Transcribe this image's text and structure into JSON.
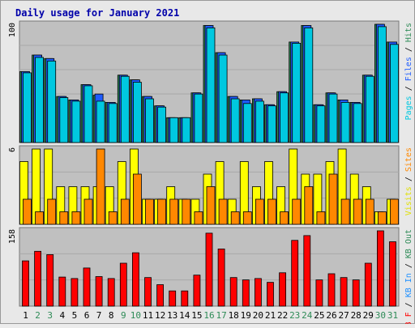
{
  "chart_data": [
    {
      "type": "bar",
      "title": "Daily usage for January 2021",
      "categories": [
        "1",
        "2",
        "3",
        "4",
        "5",
        "6",
        "7",
        "8",
        "9",
        "10",
        "11",
        "12",
        "13",
        "14",
        "15",
        "16",
        "17",
        "18",
        "19",
        "20",
        "21",
        "22",
        "23",
        "24",
        "25",
        "26",
        "27",
        "28",
        "29",
        "30",
        "31"
      ],
      "weekend_days": [
        2,
        3,
        9,
        10,
        16,
        17,
        23,
        24,
        30,
        31
      ],
      "colors": {
        "weekday_label": "#000000",
        "weekend_label": "#2e8b57"
      }
    },
    {
      "type": "bar",
      "panel": "pages-files-hits",
      "ymax_label": "100",
      "ylim": [
        0,
        100
      ],
      "legend": [
        {
          "text": "Pages",
          "color": "#00c8e0"
        },
        {
          "text": " / ",
          "color": "#000000"
        },
        {
          "text": "Files",
          "color": "#1e5cff"
        },
        {
          "text": " / ",
          "color": "#000000"
        },
        {
          "text": "Hits",
          "color": "#2e8b57"
        }
      ],
      "series": [
        {
          "name": "Hits",
          "color": "#2e8b57",
          "values": [
            60,
            74,
            71,
            39,
            36,
            49,
            40,
            34,
            57,
            53,
            39,
            31,
            21,
            21,
            42,
            99,
            76,
            39,
            36,
            37,
            32,
            43,
            85,
            99,
            32,
            42,
            36,
            34,
            57,
            100,
            85
          ]
        },
        {
          "name": "Files",
          "color": "#1e5cff",
          "values": [
            60,
            74,
            71,
            39,
            36,
            49,
            41,
            34,
            57,
            53,
            39,
            31,
            21,
            21,
            42,
            99,
            76,
            39,
            36,
            37,
            32,
            43,
            85,
            99,
            32,
            42,
            36,
            34,
            57,
            100,
            85
          ]
        },
        {
          "name": "Pages",
          "color": "#00c8e0",
          "values": [
            59,
            72,
            69,
            38,
            35,
            48,
            35,
            33,
            56,
            51,
            37,
            30,
            21,
            21,
            41,
            97,
            74,
            37,
            33,
            35,
            31,
            42,
            84,
            97,
            31,
            41,
            34,
            33,
            56,
            98,
            83
          ]
        }
      ]
    },
    {
      "type": "bar",
      "panel": "visits-sites",
      "ymax_label": "6",
      "ylim": [
        0,
        6
      ],
      "legend": [
        {
          "text": "Visits",
          "color": "#e0e000"
        },
        {
          "text": " / ",
          "color": "#000000"
        },
        {
          "text": "Sites",
          "color": "#ff8800"
        }
      ],
      "series": [
        {
          "name": "Visits",
          "color": "#ffff00",
          "values": [
            5,
            6,
            6,
            3,
            3,
            3,
            3,
            3,
            5,
            6,
            2,
            2,
            3,
            2,
            2,
            4,
            5,
            2,
            5,
            3,
            5,
            3,
            6,
            4,
            4,
            5,
            6,
            4,
            3,
            1,
            2
          ]
        },
        {
          "name": "Sites",
          "color": "#ff8800",
          "values": [
            2,
            1,
            2,
            1,
            1,
            2,
            6,
            1,
            2,
            4,
            2,
            2,
            2,
            2,
            1,
            3,
            2,
            1,
            1,
            2,
            2,
            1,
            2,
            3,
            1,
            4,
            2,
            2,
            2,
            1,
            2
          ]
        }
      ]
    },
    {
      "type": "bar",
      "panel": "kbytes",
      "ymax_label": "158",
      "ylim": [
        0,
        158
      ],
      "legend": [
        {
          "text": "KB F",
          "color": "#ff0000"
        },
        {
          "text": " / ",
          "color": "#000000"
        },
        {
          "text": "KB In",
          "color": "#1e90ff"
        },
        {
          "text": " / ",
          "color": "#000000"
        },
        {
          "text": "KB Out",
          "color": "#2e8b57"
        }
      ],
      "series": [
        {
          "name": "KB F",
          "color": "#ff0000",
          "values": [
            95,
            115,
            108,
            61,
            58,
            80,
            62,
            58,
            90,
            112,
            60,
            45,
            32,
            32,
            65,
            153,
            120,
            60,
            55,
            58,
            50,
            70,
            138,
            148,
            55,
            68,
            60,
            55,
            90,
            158,
            135
          ]
        }
      ]
    }
  ]
}
